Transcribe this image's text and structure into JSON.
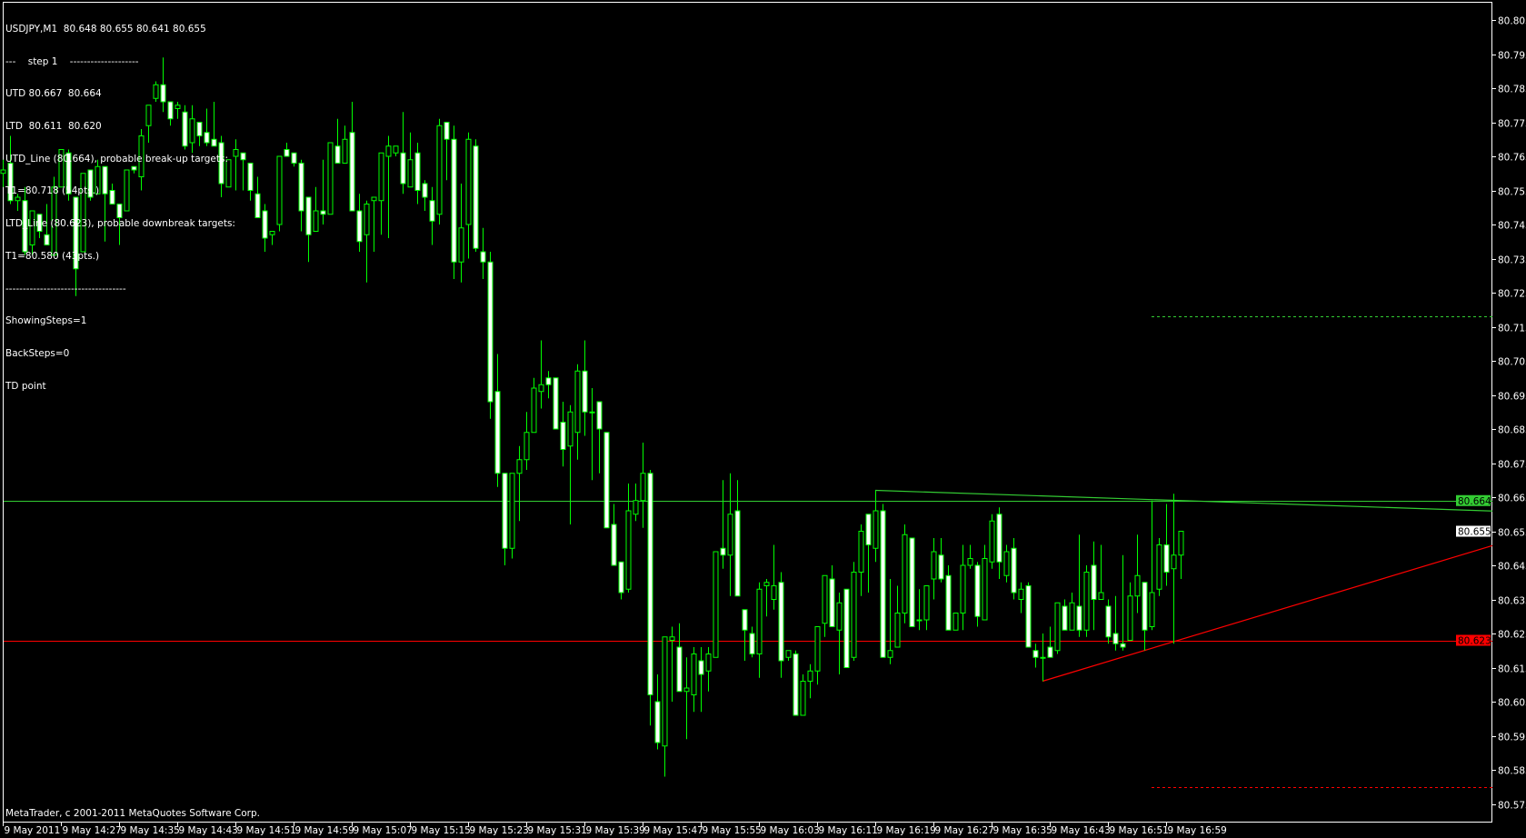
{
  "header": {
    "symbol_line": "USDJPY,M1  80.648 80.655 80.641 80.655",
    "lines": [
      "---    step 1    --------------------",
      "UTD 80.667  80.664",
      "LTD  80.611  80.620",
      "UTD_Line (80.664), probable break-up targets:",
      "T1=80.718 (54pts.)",
      "LTD_Line (80.623), probable downbreak targets:",
      "T1=80.580 (43pts.)",
      "-----------------------------------",
      "ShowingSteps=1",
      "BackSteps=0",
      "TD point"
    ]
  },
  "footer": "MetaTrader, c 2001-2011 MetaQuotes Software Corp.",
  "colors": {
    "background": "#000000",
    "candle_outline": "#00ff00",
    "bear_fill": "#ffffff",
    "bull_fill": "#000000",
    "utd": "#33cc33",
    "ltd": "#ff0000",
    "axis": "#ffffff"
  },
  "chart_data": {
    "type": "candlestick",
    "symbol": "USDJPY",
    "timeframe": "M1",
    "ylim": [
      80.572,
      80.81
    ],
    "y_ticks": [
      "80.805",
      "80.795",
      "80.785",
      "80.775",
      "80.765",
      "80.755",
      "80.745",
      "80.735",
      "80.725",
      "80.715",
      "80.705",
      "80.695",
      "80.685",
      "80.675",
      "80.665",
      "80.655",
      "80.645",
      "80.635",
      "80.625",
      "80.615",
      "80.605",
      "80.595",
      "80.585",
      "80.575"
    ],
    "x_ticks": [
      {
        "index": 0,
        "label": "9 May 2011"
      },
      {
        "index": 8,
        "label": "9 May 14:27"
      },
      {
        "index": 16,
        "label": "9 May 14:35"
      },
      {
        "index": 24,
        "label": "9 May 14:43"
      },
      {
        "index": 32,
        "label": "9 May 14:51"
      },
      {
        "index": 40,
        "label": "9 May 14:59"
      },
      {
        "index": 48,
        "label": "9 May 15:07"
      },
      {
        "index": 56,
        "label": "9 May 15:15"
      },
      {
        "index": 64,
        "label": "9 May 15:23"
      },
      {
        "index": 72,
        "label": "9 May 15:31"
      },
      {
        "index": 80,
        "label": "9 May 15:39"
      },
      {
        "index": 88,
        "label": "9 May 15:47"
      },
      {
        "index": 96,
        "label": "9 May 15:55"
      },
      {
        "index": 104,
        "label": "9 May 16:03"
      },
      {
        "index": 112,
        "label": "9 May 16:11"
      },
      {
        "index": 120,
        "label": "9 May 16:19"
      },
      {
        "index": 128,
        "label": "9 May 16:27"
      },
      {
        "index": 136,
        "label": "9 May 16:35"
      },
      {
        "index": 144,
        "label": "9 May 16:43"
      },
      {
        "index": 152,
        "label": "9 May 16:51"
      },
      {
        "index": 160,
        "label": "9 May 16:59"
      }
    ],
    "ohlc_fields": [
      "time",
      "open",
      "high",
      "low",
      "close"
    ],
    "candles": [
      [
        "14:19",
        80.76,
        80.764,
        80.756,
        80.761
      ],
      [
        "14:20",
        80.763,
        80.771,
        80.751,
        80.752
      ],
      [
        "14:21",
        80.752,
        80.754,
        80.749,
        80.753
      ],
      [
        "14:22",
        80.752,
        80.756,
        80.736,
        80.737
      ],
      [
        "14:23",
        80.739,
        80.749,
        80.736,
        80.749
      ],
      [
        "14:24",
        80.748,
        80.748,
        80.741,
        80.743
      ],
      [
        "14:25",
        80.742,
        80.751,
        80.739,
        80.739
      ],
      [
        "14:26",
        80.736,
        80.759,
        80.736,
        80.756
      ],
      [
        "14:27",
        80.756,
        80.767,
        80.756,
        80.767
      ],
      [
        "14:28",
        80.766,
        80.767,
        80.752,
        80.754
      ],
      [
        "14:29",
        80.753,
        80.753,
        80.724,
        80.732
      ],
      [
        "14:30",
        80.737,
        80.76,
        80.737,
        80.76
      ],
      [
        "14:31",
        80.761,
        80.761,
        80.752,
        80.753
      ],
      [
        "14:32",
        80.754,
        80.764,
        80.754,
        80.762
      ],
      [
        "14:33",
        80.762,
        80.762,
        80.74,
        80.754
      ],
      [
        "14:34",
        80.755,
        80.757,
        80.751,
        80.751
      ],
      [
        "14:35",
        80.751,
        80.751,
        80.739,
        80.747
      ],
      [
        "14:36",
        80.749,
        80.761,
        80.749,
        80.761
      ],
      [
        "14:37",
        80.762,
        80.762,
        80.76,
        80.761
      ],
      [
        "14:38",
        80.759,
        80.773,
        80.755,
        80.771
      ],
      [
        "14:39",
        80.774,
        80.78,
        80.769,
        80.78
      ],
      [
        "14:40",
        80.782,
        80.787,
        80.781,
        80.786
      ],
      [
        "14:41",
        80.786,
        80.794,
        80.778,
        80.781
      ],
      [
        "14:42",
        80.781,
        80.781,
        80.774,
        80.776
      ],
      [
        "14:43",
        80.779,
        80.781,
        80.776,
        80.78
      ],
      [
        "14:44",
        80.778,
        80.78,
        80.767,
        80.768
      ],
      [
        "14:45",
        80.769,
        80.78,
        80.766,
        80.776
      ],
      [
        "14:46",
        80.775,
        80.775,
        80.768,
        80.771
      ],
      [
        "14:47",
        80.772,
        80.779,
        80.768,
        80.769
      ],
      [
        "14:48",
        80.77,
        80.781,
        80.768,
        80.768
      ],
      [
        "14:49",
        80.769,
        80.771,
        80.753,
        80.757
      ],
      [
        "14:50",
        80.756,
        80.764,
        80.756,
        80.764
      ],
      [
        "14:51",
        80.765,
        80.77,
        80.755,
        80.767
      ],
      [
        "14:52",
        80.766,
        80.766,
        80.755,
        80.764
      ],
      [
        "14:53",
        80.763,
        80.763,
        80.752,
        80.755
      ],
      [
        "14:54",
        80.754,
        80.759,
        80.747,
        80.747
      ],
      [
        "14:55",
        80.749,
        80.751,
        80.737,
        80.741
      ],
      [
        "14:56",
        80.742,
        80.743,
        80.739,
        80.743
      ],
      [
        "14:57",
        80.745,
        80.765,
        80.743,
        80.765
      ],
      [
        "14:58",
        80.767,
        80.769,
        80.765,
        80.765
      ],
      [
        "14:59",
        80.766,
        80.766,
        80.762,
        80.763
      ],
      [
        "15:00",
        80.763,
        80.764,
        80.743,
        80.749
      ],
      [
        "15:01",
        80.753,
        80.753,
        80.734,
        80.742
      ],
      [
        "15:02",
        80.743,
        80.756,
        80.743,
        80.749
      ],
      [
        "15:03",
        80.749,
        80.764,
        80.745,
        80.748
      ],
      [
        "15:04",
        80.748,
        80.769,
        80.748,
        80.769
      ],
      [
        "15:05",
        80.768,
        80.776,
        80.763,
        80.763
      ],
      [
        "15:06",
        80.763,
        80.774,
        80.763,
        80.77
      ],
      [
        "15:07",
        80.772,
        80.781,
        80.749,
        80.749
      ],
      [
        "15:08",
        80.749,
        80.754,
        80.737,
        80.74
      ],
      [
        "15:09",
        80.742,
        80.752,
        80.728,
        80.751
      ],
      [
        "15:10",
        80.752,
        80.753,
        80.737,
        80.753
      ],
      [
        "15:11",
        80.752,
        80.766,
        80.742,
        80.766
      ],
      [
        "15:12",
        80.765,
        80.771,
        80.741,
        80.768
      ],
      [
        "15:13",
        80.766,
        80.768,
        80.765,
        80.768
      ],
      [
        "15:14",
        80.766,
        80.778,
        80.754,
        80.757
      ],
      [
        "15:15",
        80.756,
        80.772,
        80.756,
        80.764
      ],
      [
        "15:16",
        80.766,
        80.769,
        80.751,
        80.755
      ],
      [
        "15:17",
        80.757,
        80.758,
        80.749,
        80.753
      ],
      [
        "15:18",
        80.752,
        80.756,
        80.739,
        80.746
      ],
      [
        "15:19",
        80.748,
        80.776,
        80.745,
        80.774
      ],
      [
        "15:20",
        80.775,
        80.775,
        80.758,
        80.77
      ],
      [
        "15:21",
        80.77,
        80.774,
        80.729,
        80.734
      ],
      [
        "15:22",
        80.734,
        80.757,
        80.728,
        80.744
      ],
      [
        "15:23",
        80.745,
        80.772,
        80.735,
        80.77
      ],
      [
        "15:24",
        80.768,
        80.77,
        80.737,
        80.738
      ],
      [
        "15:25",
        80.737,
        80.744,
        80.729,
        80.734
      ],
      [
        "15:26",
        80.734,
        80.737,
        80.688,
        80.693
      ],
      [
        "15:27",
        80.696,
        80.707,
        80.668,
        80.672
      ],
      [
        "15:28",
        80.672,
        80.672,
        80.645,
        80.65
      ],
      [
        "15:29",
        80.65,
        80.672,
        80.647,
        80.672
      ],
      [
        "15:30",
        80.672,
        80.68,
        80.658,
        80.676
      ],
      [
        "15:31",
        80.676,
        80.69,
        80.673,
        80.684
      ],
      [
        "15:32",
        80.684,
        80.7,
        80.684,
        80.697
      ],
      [
        "15:33",
        80.696,
        80.711,
        80.691,
        80.698
      ],
      [
        "15:34",
        80.7,
        80.702,
        80.694,
        80.698
      ],
      [
        "15:35",
        80.7,
        80.7,
        80.685,
        80.685
      ],
      [
        "15:36",
        80.687,
        80.693,
        80.674,
        80.679
      ],
      [
        "15:37",
        80.68,
        80.692,
        80.657,
        80.69
      ],
      [
        "15:38",
        80.684,
        80.704,
        80.676,
        80.702
      ],
      [
        "15:39",
        80.702,
        80.711,
        80.683,
        80.69
      ],
      [
        "15:40",
        80.69,
        80.697,
        80.67,
        80.69
      ],
      [
        "15:41",
        80.693,
        80.693,
        80.672,
        80.685
      ],
      [
        "15:42",
        80.684,
        80.684,
        80.656,
        80.656
      ],
      [
        "15:43",
        80.657,
        80.663,
        80.645,
        80.645
      ],
      [
        "15:44",
        80.646,
        80.646,
        80.635,
        80.637
      ],
      [
        "15:45",
        80.638,
        80.669,
        80.637,
        80.661
      ],
      [
        "15:46",
        80.66,
        80.669,
        80.658,
        80.664
      ],
      [
        "15:47",
        80.664,
        80.681,
        80.656,
        80.672
      ],
      [
        "15:48",
        80.672,
        80.673,
        80.598,
        80.607
      ],
      [
        "15:49",
        80.605,
        80.613,
        80.591,
        80.593
      ],
      [
        "15:50",
        80.592,
        80.624,
        80.583,
        80.624
      ],
      [
        "15:51",
        80.623,
        80.627,
        80.605,
        80.624
      ],
      [
        "15:52",
        80.621,
        80.628,
        80.608,
        80.608
      ],
      [
        "15:53",
        80.608,
        80.618,
        80.594,
        80.609
      ],
      [
        "15:54",
        80.607,
        80.621,
        80.602,
        80.619
      ],
      [
        "15:55",
        80.617,
        80.621,
        80.602,
        80.613
      ],
      [
        "15:56",
        80.614,
        80.621,
        80.608,
        80.619
      ],
      [
        "15:57",
        80.618,
        80.649,
        80.618,
        80.649
      ],
      [
        "15:58",
        80.65,
        80.67,
        80.644,
        80.648
      ],
      [
        "15:59",
        80.648,
        80.672,
        80.636,
        80.66
      ],
      [
        "16:00",
        80.661,
        80.67,
        80.636,
        80.636
      ],
      [
        "16:01",
        80.632,
        80.632,
        80.617,
        80.626
      ],
      [
        "16:02",
        80.625,
        80.627,
        80.618,
        80.619
      ],
      [
        "16:03",
        80.619,
        80.64,
        80.612,
        80.638
      ],
      [
        "16:04",
        80.639,
        80.641,
        80.63,
        80.64
      ],
      [
        "16:05",
        80.635,
        80.651,
        80.632,
        80.639
      ],
      [
        "16:06",
        80.64,
        80.643,
        80.612,
        80.617
      ],
      [
        "16:07",
        80.618,
        80.62,
        80.617,
        80.62
      ],
      [
        "16:08",
        80.619,
        80.62,
        80.601,
        80.601
      ],
      [
        "16:09",
        80.601,
        80.613,
        80.601,
        80.611
      ],
      [
        "16:10",
        80.611,
        80.616,
        80.606,
        80.614
      ],
      [
        "16:11",
        80.614,
        80.627,
        80.61,
        80.627
      ],
      [
        "16:12",
        80.628,
        80.642,
        80.624,
        80.642
      ],
      [
        "16:13",
        80.641,
        80.645,
        80.627,
        80.627
      ],
      [
        "16:14",
        80.626,
        80.637,
        80.613,
        80.634
      ],
      [
        "16:15",
        80.638,
        80.638,
        80.615,
        80.615
      ],
      [
        "16:16",
        80.618,
        80.646,
        80.617,
        80.643
      ],
      [
        "16:17",
        80.643,
        80.657,
        80.636,
        80.655
      ],
      [
        "16:18",
        80.66,
        80.66,
        80.637,
        80.651
      ],
      [
        "16:19",
        80.65,
        80.667,
        80.646,
        80.661
      ],
      [
        "16:20",
        80.661,
        80.663,
        80.618,
        80.618
      ],
      [
        "16:21",
        80.618,
        80.641,
        80.616,
        80.62
      ],
      [
        "16:22",
        80.621,
        80.639,
        80.621,
        80.631
      ],
      [
        "16:23",
        80.631,
        80.657,
        80.628,
        80.654
      ],
      [
        "16:24",
        80.653,
        80.653,
        80.627,
        80.627
      ],
      [
        "16:25",
        80.629,
        80.638,
        80.626,
        80.629
      ],
      [
        "16:26",
        80.629,
        80.639,
        80.626,
        80.639
      ],
      [
        "16:27",
        80.641,
        80.653,
        80.635,
        80.649
      ],
      [
        "16:28",
        80.648,
        80.653,
        80.64,
        80.641
      ],
      [
        "16:29",
        80.642,
        80.645,
        80.626,
        80.626
      ],
      [
        "16:30",
        80.626,
        80.631,
        80.626,
        80.631
      ],
      [
        "16:31",
        80.631,
        80.651,
        80.626,
        80.645
      ],
      [
        "16:32",
        80.645,
        80.651,
        80.644,
        80.647
      ],
      [
        "16:33",
        80.645,
        80.646,
        80.627,
        80.63
      ],
      [
        "16:34",
        80.629,
        80.651,
        80.629,
        80.647
      ],
      [
        "16:35",
        80.646,
        80.66,
        80.644,
        80.658
      ],
      [
        "16:36",
        80.66,
        80.662,
        80.641,
        80.646
      ],
      [
        "16:37",
        80.642,
        80.651,
        80.64,
        80.649
      ],
      [
        "16:38",
        80.65,
        80.653,
        80.635,
        80.637
      ],
      [
        "16:39",
        80.635,
        80.64,
        80.631,
        80.638
      ],
      [
        "16:40",
        80.639,
        80.64,
        80.621,
        80.621
      ],
      [
        "16:41",
        80.62,
        80.622,
        80.615,
        80.618
      ],
      [
        "16:42",
        80.618,
        80.625,
        80.611,
        80.618
      ],
      [
        "16:43",
        80.621,
        80.627,
        80.618,
        80.618
      ],
      [
        "16:44",
        80.62,
        80.634,
        80.619,
        80.634
      ],
      [
        "16:45",
        80.633,
        80.635,
        80.626,
        80.626
      ],
      [
        "16:46",
        80.626,
        80.637,
        80.626,
        80.634
      ],
      [
        "16:47",
        80.633,
        80.654,
        80.624,
        80.626
      ],
      [
        "16:48",
        80.626,
        80.645,
        80.624,
        80.643
      ],
      [
        "16:49",
        80.645,
        80.652,
        80.626,
        80.635
      ],
      [
        "16:50",
        80.635,
        80.651,
        80.635,
        80.637
      ],
      [
        "16:51",
        80.633,
        80.635,
        80.622,
        80.624
      ],
      [
        "16:52",
        80.625,
        80.636,
        80.62,
        80.622
      ],
      [
        "16:53",
        80.622,
        80.648,
        80.62,
        80.621
      ],
      [
        "16:54",
        80.623,
        80.64,
        80.623,
        80.636
      ],
      [
        "16:55",
        80.636,
        80.654,
        80.631,
        80.642
      ],
      [
        "16:56",
        80.64,
        80.64,
        80.62,
        80.626
      ],
      [
        "16:57",
        80.627,
        80.664,
        80.626,
        80.637
      ],
      [
        "16:58",
        80.638,
        80.653,
        80.636,
        80.651
      ],
      [
        "16:59",
        80.651,
        80.663,
        80.639,
        80.643
      ],
      [
        "17:00",
        80.644,
        80.666,
        80.622,
        80.648
      ],
      [
        "17:01",
        80.648,
        80.655,
        80.641,
        80.655
      ]
    ],
    "horizontal_lines": [
      {
        "name": "UTD_Line",
        "price": 80.664,
        "label": "80.664",
        "color": "#33cc33",
        "style": "solid"
      },
      {
        "name": "LTD_Line",
        "price": 80.623,
        "label": "80.623",
        "color": "#ff0000",
        "style": "solid"
      }
    ],
    "target_lines": [
      {
        "name": "break-up target T1",
        "price": 80.718,
        "from_index": 158,
        "color": "#33cc33",
        "style": "dashed"
      },
      {
        "name": "downbreak target T1",
        "price": 80.58,
        "from_index": 158,
        "color": "#ff0000",
        "style": "dashed"
      }
    ],
    "trend_lines": [
      {
        "name": "UTD",
        "points": [
          [
            120,
            80.667
          ],
          [
            162,
            80.664
          ]
        ],
        "color": "#33cc33"
      },
      {
        "name": "LTD",
        "points": [
          [
            143,
            80.611
          ],
          [
            157,
            80.62
          ]
        ],
        "color": "#ff0000"
      }
    ],
    "current_price": {
      "price": 80.655,
      "label": "80.655"
    }
  }
}
